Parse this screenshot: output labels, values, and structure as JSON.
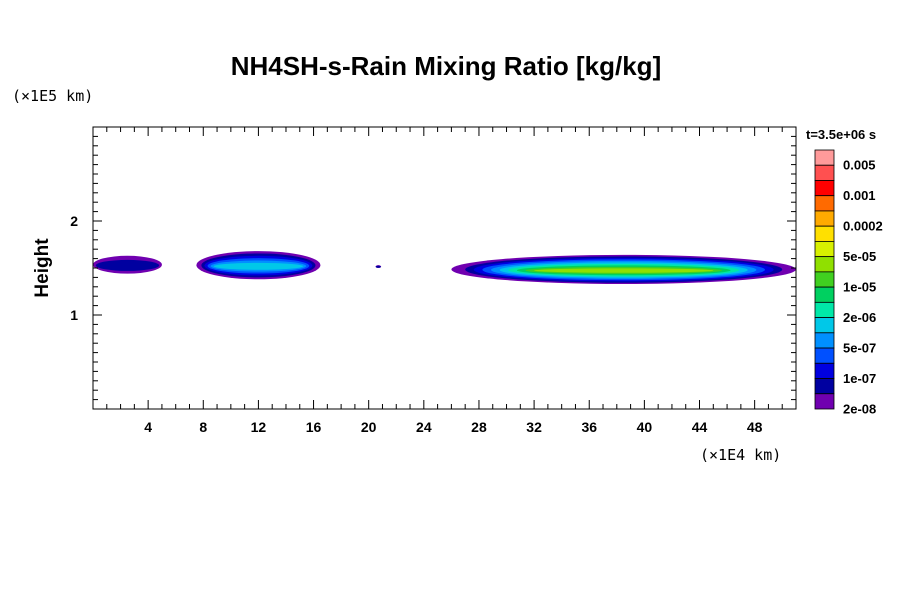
{
  "chart_data": {
    "type": "heatmap",
    "title": "NH4SH-s-Rain Mixing Ratio [kg/kg]",
    "ylabel": "Height",
    "xlabel": "",
    "x_scale_label": "(×1E4 km)",
    "y_scale_label": "(×1E5 km)",
    "time_label": "t=3.5e+06 s",
    "xlim": [
      0,
      51
    ],
    "ylim": [
      0,
      3
    ],
    "x_ticks": [
      4,
      8,
      12,
      16,
      20,
      24,
      28,
      32,
      36,
      40,
      44,
      48
    ],
    "y_ticks": [
      1,
      2
    ],
    "colorbar": {
      "levels": [
        "0.005",
        "0.001",
        "0.0002",
        "5e-05",
        "1e-05",
        "2e-06",
        "5e-07",
        "1e-07",
        "2e-08"
      ],
      "colors": [
        "#ff9a9a",
        "#ff5050",
        "#ff0000",
        "#ff6a00",
        "#ffaa00",
        "#ffe000",
        "#d8f000",
        "#90e000",
        "#40d020",
        "#00d060",
        "#00e8a8",
        "#00c8e8",
        "#0090ff",
        "#0050ff",
        "#0000e0",
        "#0000a0",
        "#7000b0"
      ]
    },
    "regions": [
      {
        "x": [
          0,
          5
        ],
        "y": [
          1.44,
          1.63
        ],
        "level": "2e-08",
        "core": "1e-07"
      },
      {
        "x": [
          7.5,
          16.5
        ],
        "y": [
          1.38,
          1.68
        ],
        "level": "1e-07",
        "core": "2e-06"
      },
      {
        "x": [
          20.5,
          20.9
        ],
        "y": [
          1.5,
          1.53
        ],
        "level": "2e-08",
        "core": "2e-08"
      },
      {
        "x": [
          26,
          51
        ],
        "y": [
          1.33,
          1.64
        ],
        "level": "1e-07",
        "core": "5e-05"
      }
    ]
  }
}
